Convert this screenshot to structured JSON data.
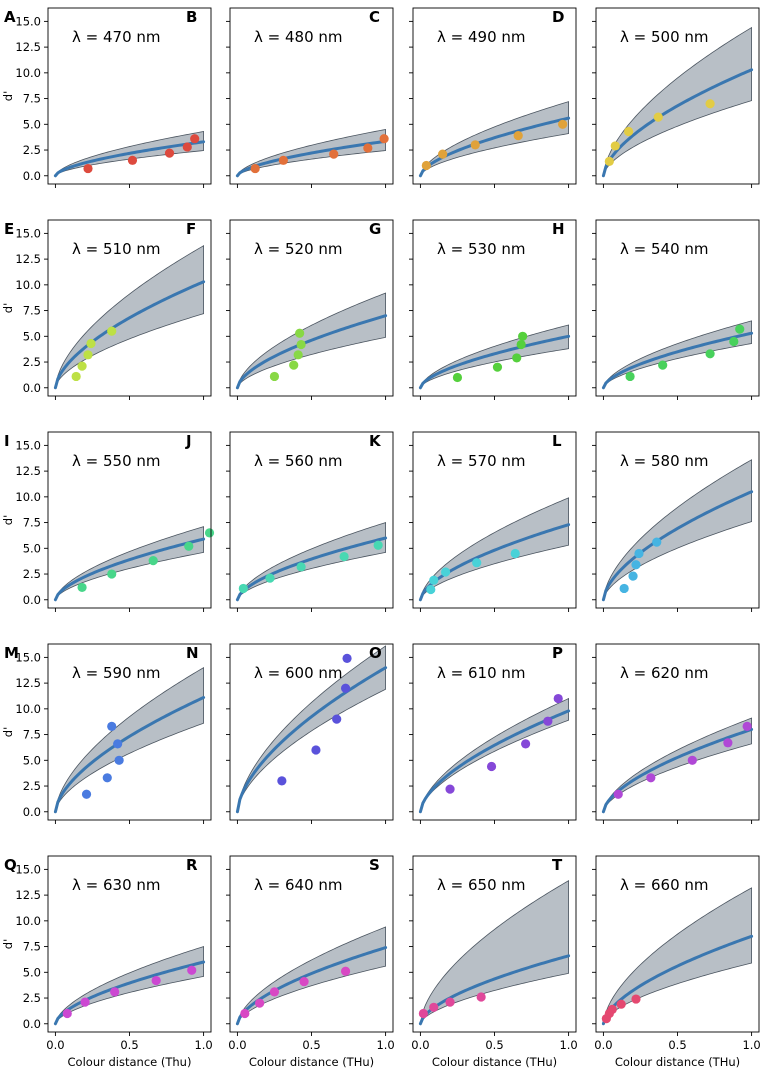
{
  "figure": {
    "y_axis_label": "d'",
    "y_ticks": [
      0.0,
      2.5,
      5.0,
      7.5,
      10.0,
      12.5,
      15.0
    ],
    "y_tick_labels": [
      "0.0",
      "2.5",
      "5.0",
      "7.5",
      "10.0",
      "12.5",
      "15.0"
    ],
    "x_ticks": [
      0.0,
      0.5,
      1.0
    ],
    "x_tick_labels": [
      "0.0",
      "0.5",
      "1.0"
    ]
  },
  "chart_data": [
    {
      "type": "line",
      "panel": "A",
      "title": "λ = 470 nm",
      "xlabel": "",
      "ylabel": "d'",
      "xlim": [
        -0.05,
        1.05
      ],
      "ylim": [
        -0.8,
        16.3
      ],
      "point_color": "#dd4a3e",
      "fit": {
        "scale": 3.3,
        "power": 0.6
      },
      "band": {
        "low": 2.45,
        "high": 4.3
      },
      "points": {
        "x": [
          0.22,
          0.52,
          0.77,
          0.89,
          0.94
        ],
        "y": [
          0.7,
          1.5,
          2.2,
          2.8,
          3.6
        ]
      }
    },
    {
      "type": "line",
      "panel": "B",
      "title": "λ = 480 nm",
      "xlabel": "",
      "ylabel": "",
      "xlim": [
        -0.05,
        1.05
      ],
      "ylim": [
        -0.8,
        16.3
      ],
      "point_color": "#e2703a",
      "fit": {
        "scale": 3.35,
        "power": 0.6
      },
      "band": {
        "low": 2.45,
        "high": 4.5
      },
      "points": {
        "x": [
          0.12,
          0.31,
          0.65,
          0.88,
          0.99
        ],
        "y": [
          0.7,
          1.5,
          2.1,
          2.7,
          3.6
        ]
      }
    },
    {
      "type": "line",
      "panel": "C",
      "title": "λ = 490 nm",
      "xlabel": "",
      "ylabel": "",
      "xlim": [
        -0.05,
        1.05
      ],
      "ylim": [
        -0.8,
        16.3
      ],
      "point_color": "#e0a23a",
      "fit": {
        "scale": 5.6,
        "power": 0.6
      },
      "band": {
        "low": 4.1,
        "high": 7.2
      },
      "points": {
        "x": [
          0.04,
          0.15,
          0.37,
          0.66,
          0.96
        ],
        "y": [
          1.0,
          2.1,
          3.0,
          3.9,
          5.0
        ]
      }
    },
    {
      "type": "line",
      "panel": "D",
      "title": "λ = 500 nm",
      "xlabel": "",
      "ylabel": "",
      "xlim": [
        -0.05,
        1.05
      ],
      "ylim": [
        -0.8,
        16.3
      ],
      "point_color": "#e2cc45",
      "fit": {
        "scale": 10.3,
        "power": 0.6
      },
      "band": {
        "low": 7.3,
        "high": 14.4
      },
      "points": {
        "x": [
          0.04,
          0.08,
          0.17,
          0.37,
          0.72
        ],
        "y": [
          1.4,
          2.9,
          4.3,
          5.7,
          7.0
        ]
      }
    },
    {
      "type": "line",
      "panel": "E",
      "title": "λ = 510 nm",
      "xlabel": "",
      "ylabel": "d'",
      "xlim": [
        -0.05,
        1.05
      ],
      "ylim": [
        -0.8,
        16.3
      ],
      "point_color": "#bde045",
      "fit": {
        "scale": 10.3,
        "power": 0.6
      },
      "band": {
        "low": 7.2,
        "high": 13.8
      },
      "points": {
        "x": [
          0.14,
          0.18,
          0.22,
          0.24,
          0.38
        ],
        "y": [
          1.1,
          2.1,
          3.2,
          4.3,
          5.5
        ]
      }
    },
    {
      "type": "line",
      "panel": "F",
      "title": "λ = 520 nm",
      "xlabel": "",
      "ylabel": "",
      "xlim": [
        -0.05,
        1.05
      ],
      "ylim": [
        -0.8,
        16.3
      ],
      "point_color": "#88d845",
      "fit": {
        "scale": 7.0,
        "power": 0.6
      },
      "band": {
        "low": 4.9,
        "high": 9.2
      },
      "points": {
        "x": [
          0.25,
          0.38,
          0.41,
          0.43,
          0.42
        ],
        "y": [
          1.1,
          2.2,
          3.2,
          4.2,
          5.3
        ]
      }
    },
    {
      "type": "line",
      "panel": "G",
      "title": "λ = 530 nm",
      "xlabel": "",
      "ylabel": "",
      "xlim": [
        -0.05,
        1.05
      ],
      "ylim": [
        -0.8,
        16.3
      ],
      "point_color": "#55d03c",
      "fit": {
        "scale": 5.0,
        "power": 0.6
      },
      "band": {
        "low": 3.8,
        "high": 6.1
      },
      "points": {
        "x": [
          0.25,
          0.52,
          0.65,
          0.68,
          0.69
        ],
        "y": [
          1.0,
          2.0,
          2.9,
          4.2,
          5.0
        ]
      }
    },
    {
      "type": "line",
      "panel": "H",
      "title": "λ = 540 nm",
      "xlabel": "",
      "ylabel": "",
      "xlim": [
        -0.05,
        1.05
      ],
      "ylim": [
        -0.8,
        16.3
      ],
      "point_color": "#48d15c",
      "fit": {
        "scale": 5.3,
        "power": 0.6
      },
      "band": {
        "low": 4.3,
        "high": 6.5
      },
      "points": {
        "x": [
          0.18,
          0.4,
          0.72,
          0.88,
          0.92
        ],
        "y": [
          1.1,
          2.2,
          3.3,
          4.5,
          5.7
        ]
      }
    },
    {
      "type": "line",
      "panel": "I",
      "title": "λ = 550 nm",
      "xlabel": "",
      "ylabel": "d'",
      "xlim": [
        -0.05,
        1.05
      ],
      "ylim": [
        -0.8,
        16.3
      ],
      "point_color": "#48d68a",
      "fit": {
        "scale": 5.9,
        "power": 0.6
      },
      "band": {
        "low": 4.6,
        "high": 7.1
      },
      "points": {
        "x": [
          0.18,
          0.38,
          0.66,
          0.9,
          1.04
        ],
        "y": [
          1.2,
          2.5,
          3.8,
          5.2,
          6.5
        ]
      }
    },
    {
      "type": "line",
      "panel": "J",
      "title": "λ = 560 nm",
      "xlabel": "",
      "ylabel": "",
      "xlim": [
        -0.05,
        1.05
      ],
      "ylim": [
        -0.8,
        16.3
      ],
      "point_color": "#48d8b2",
      "fit": {
        "scale": 6.0,
        "power": 0.6
      },
      "band": {
        "low": 4.6,
        "high": 7.5
      },
      "points": {
        "x": [
          0.04,
          0.22,
          0.43,
          0.72,
          0.95
        ],
        "y": [
          1.1,
          2.1,
          3.2,
          4.2,
          5.3
        ]
      }
    },
    {
      "type": "line",
      "panel": "K",
      "title": "λ = 570 nm",
      "xlabel": "",
      "ylabel": "",
      "xlim": [
        -0.05,
        1.05
      ],
      "ylim": [
        -0.8,
        16.3
      ],
      "point_color": "#48d2d8",
      "fit": {
        "scale": 7.3,
        "power": 0.6
      },
      "band": {
        "low": 5.3,
        "high": 9.9
      },
      "points": {
        "x": [
          0.07,
          0.09,
          0.17,
          0.38,
          0.64
        ],
        "y": [
          1.0,
          1.9,
          2.7,
          3.6,
          4.5
        ]
      }
    },
    {
      "type": "line",
      "panel": "L",
      "title": "λ = 580 nm",
      "xlabel": "",
      "ylabel": "",
      "xlim": [
        -0.05,
        1.05
      ],
      "ylim": [
        -0.8,
        16.3
      ],
      "point_color": "#46b4e2",
      "fit": {
        "scale": 10.5,
        "power": 0.6
      },
      "band": {
        "low": 7.6,
        "high": 13.6
      },
      "points": {
        "x": [
          0.14,
          0.2,
          0.22,
          0.24,
          0.36
        ],
        "y": [
          1.1,
          2.3,
          3.4,
          4.5,
          5.6
        ]
      }
    },
    {
      "type": "line",
      "panel": "M",
      "title": "λ = 590 nm",
      "xlabel": "",
      "ylabel": "d'",
      "xlim": [
        -0.05,
        1.05
      ],
      "ylim": [
        -0.8,
        16.3
      ],
      "point_color": "#4a7be0",
      "fit": {
        "scale": 11.1,
        "power": 0.6
      },
      "band": {
        "low": 8.6,
        "high": 14.0
      },
      "points": {
        "x": [
          0.21,
          0.35,
          0.38,
          0.42,
          0.43
        ],
        "y": [
          1.7,
          3.3,
          8.3,
          6.6,
          5.0
        ]
      }
    },
    {
      "type": "line",
      "panel": "N",
      "title": "λ = 600 nm",
      "xlabel": "",
      "ylabel": "",
      "xlim": [
        -0.05,
        1.05
      ],
      "ylim": [
        -0.8,
        16.3
      ],
      "point_color": "#5a52db",
      "fit": {
        "scale": 14.0,
        "power": 0.6
      },
      "band": {
        "low": 11.9,
        "high": 16.1
      },
      "points": {
        "x": [
          0.3,
          0.53,
          0.67,
          0.73,
          0.74
        ],
        "y": [
          3.0,
          6.0,
          9.0,
          12.0,
          14.9
        ]
      }
    },
    {
      "type": "line",
      "panel": "O",
      "title": "λ = 610 nm",
      "xlabel": "",
      "ylabel": "",
      "xlim": [
        -0.05,
        1.05
      ],
      "ylim": [
        -0.8,
        16.3
      ],
      "point_color": "#8548d8",
      "fit": {
        "scale": 9.8,
        "power": 0.6
      },
      "band": {
        "low": 8.9,
        "high": 11.0
      },
      "points": {
        "x": [
          0.2,
          0.48,
          0.71,
          0.86,
          0.93
        ],
        "y": [
          2.2,
          4.4,
          6.6,
          8.8,
          11.0
        ]
      }
    },
    {
      "type": "line",
      "panel": "P",
      "title": "λ = 620 nm",
      "xlabel": "",
      "ylabel": "",
      "xlim": [
        -0.05,
        1.05
      ],
      "ylim": [
        -0.8,
        16.3
      ],
      "point_color": "#b048d6",
      "fit": {
        "scale": 8.0,
        "power": 0.6
      },
      "band": {
        "low": 6.6,
        "high": 9.1
      },
      "points": {
        "x": [
          0.1,
          0.32,
          0.6,
          0.84,
          0.97
        ],
        "y": [
          1.7,
          3.3,
          5.0,
          6.7,
          8.3
        ]
      }
    },
    {
      "type": "line",
      "panel": "Q",
      "title": "λ = 630 nm",
      "xlabel": "Colour distance (Thu)",
      "ylabel": "d'",
      "xlim": [
        -0.05,
        1.05
      ],
      "ylim": [
        -0.8,
        16.3
      ],
      "point_color": "#cc48d2",
      "fit": {
        "scale": 6.0,
        "power": 0.6
      },
      "band": {
        "low": 4.6,
        "high": 7.5
      },
      "points": {
        "x": [
          0.08,
          0.2,
          0.4,
          0.68,
          0.92
        ],
        "y": [
          1.0,
          2.1,
          3.1,
          4.2,
          5.2
        ]
      }
    },
    {
      "type": "line",
      "panel": "R",
      "title": "λ = 640 nm",
      "xlabel": "Colour distance (THu)",
      "ylabel": "",
      "xlim": [
        -0.05,
        1.05
      ],
      "ylim": [
        -0.8,
        16.3
      ],
      "point_color": "#d848c4",
      "fit": {
        "scale": 7.4,
        "power": 0.6
      },
      "band": {
        "low": 5.6,
        "high": 9.4
      },
      "points": {
        "x": [
          0.05,
          0.15,
          0.25,
          0.45,
          0.73
        ],
        "y": [
          1.0,
          2.0,
          3.1,
          4.1,
          5.1
        ]
      }
    },
    {
      "type": "line",
      "panel": "S",
      "title": "λ = 650 nm",
      "xlabel": "Colour distance (THu)",
      "ylabel": "",
      "xlim": [
        -0.05,
        1.05
      ],
      "ylim": [
        -0.8,
        16.3
      ],
      "point_color": "#e0489a",
      "fit": {
        "scale": 6.6,
        "power": 0.6
      },
      "band": {
        "low": 4.9,
        "high": 13.9
      },
      "points": {
        "x": [
          0.02,
          0.09,
          0.2,
          0.41
        ],
        "y": [
          1.0,
          1.6,
          2.1,
          2.6
        ]
      }
    },
    {
      "type": "line",
      "panel": "T",
      "title": "λ = 660 nm",
      "xlabel": "Colour distance (THu)",
      "ylabel": "",
      "xlim": [
        -0.05,
        1.05
      ],
      "ylim": [
        -0.8,
        16.3
      ],
      "point_color": "#e44870",
      "fit": {
        "scale": 8.5,
        "power": 0.6
      },
      "band": {
        "low": 5.9,
        "high": 13.2
      },
      "points": {
        "x": [
          0.02,
          0.04,
          0.06,
          0.12,
          0.22
        ],
        "y": [
          0.5,
          1.0,
          1.4,
          1.9,
          2.4
        ]
      }
    }
  ]
}
